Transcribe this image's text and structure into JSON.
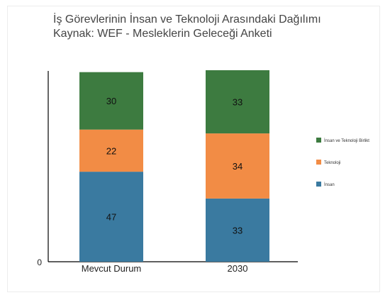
{
  "chart_data": {
    "type": "bar",
    "stacked": true,
    "title": "İş Görevlerinin İnsan ve Teknoloji Arasındaki Dağılımı",
    "subtitle": "Kaynak: WEF - Mesleklerin Geleceği Anketi",
    "categories": [
      "Mevcut Durum",
      "2030"
    ],
    "series": [
      {
        "name": "İnsan",
        "values": [
          47,
          33
        ],
        "color": "#3a7aa0"
      },
      {
        "name": "Teknoloji",
        "values": [
          22,
          34
        ],
        "color": "#f28c45"
      },
      {
        "name": "İnsan ve Teknoloji Birlikt",
        "values": [
          30,
          33
        ],
        "color": "#3d7b40"
      }
    ],
    "y_tick_labels": [
      "0"
    ],
    "ylim": [
      0,
      100
    ],
    "legend_position": "right",
    "grid": false
  }
}
